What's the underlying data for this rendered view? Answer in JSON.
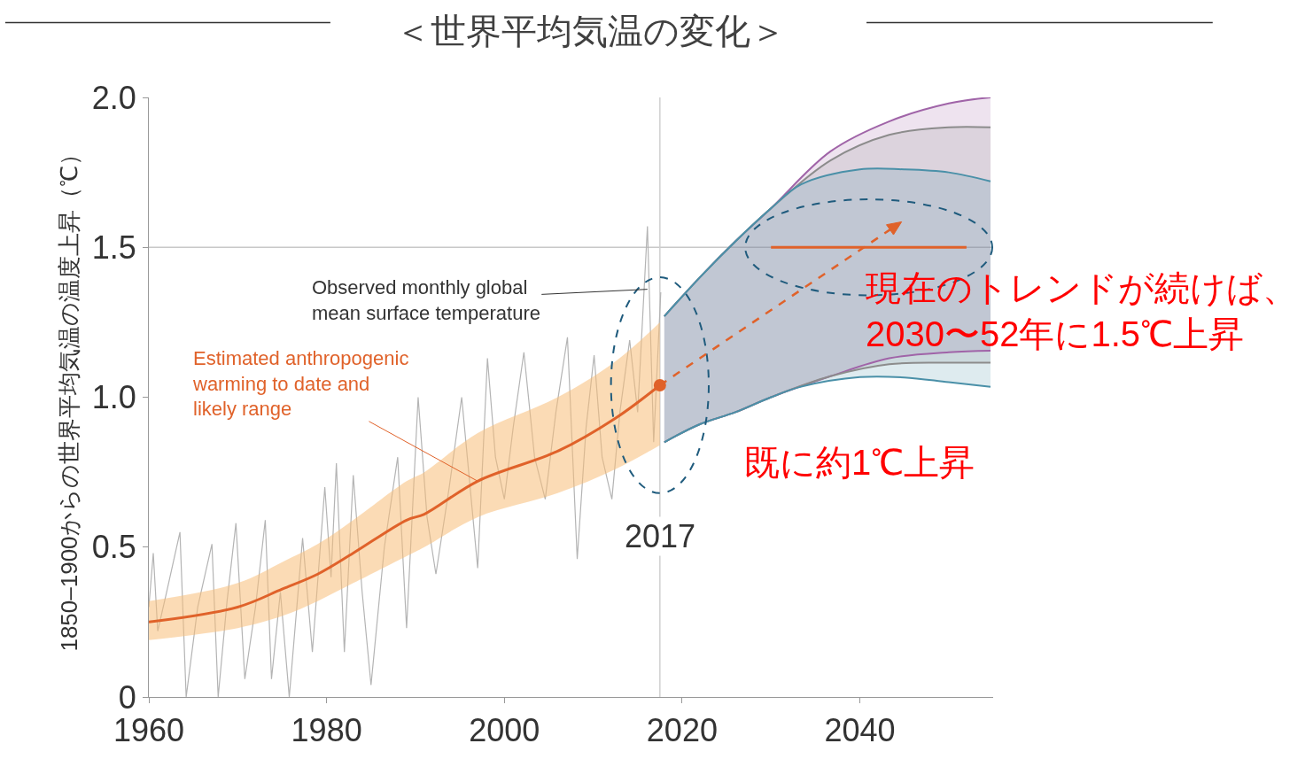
{
  "chart_data": {
    "type": "line",
    "title": "＜世界平均気温の変化＞",
    "ylabel": "1850–1900からの世界平均気温の温度上昇（℃）",
    "xlim": [
      1960,
      2055
    ],
    "xticks": [
      1960,
      1980,
      2000,
      2020,
      2040
    ],
    "ylim": [
      0,
      2.0
    ],
    "yticks": [
      0,
      {
        "value": 0.5,
        "label": "0.5"
      },
      {
        "value": 1.0,
        "label": "1.0"
      },
      {
        "value": 1.5,
        "label": "1.5"
      },
      {
        "value": 2.0,
        "label": "2.0"
      }
    ],
    "grid": false,
    "series": [
      {
        "color": "#b4b4b4",
        "x": [
          1960,
          1960.5,
          1961,
          1962,
          1963.5,
          1964.2,
          1965.5,
          1967.1,
          1967.8,
          1968.8,
          1969.8,
          1970.8,
          1972,
          1973.1,
          1973.8,
          1974.8,
          1975.8,
          1977.3,
          1978.4,
          1979.8,
          1980.5,
          1981.1,
          1982,
          1983,
          1984,
          1985,
          1986.5,
          1988,
          1989,
          1990.3,
          1991.3,
          1992.3,
          1993.8,
          1995.2,
          1997,
          1998.1,
          1999,
          2000,
          2001,
          2002.2,
          2003.4,
          2004.6,
          2005.8,
          2007.1,
          2008.2,
          2009.2,
          2010.1,
          2011,
          2012.1,
          2013,
          2014.1,
          2015,
          2016.1,
          2016.8,
          2017.6
        ],
        "values": [
          0.3,
          0.48,
          0.22,
          0.35,
          0.55,
          0.0,
          0.3,
          0.51,
          0.0,
          0.32,
          0.58,
          0.06,
          0.3,
          0.59,
          0.06,
          0.35,
          0.0,
          0.53,
          0.15,
          0.7,
          0.4,
          0.78,
          0.15,
          0.74,
          0.35,
          0.04,
          0.5,
          0.8,
          0.23,
          1.0,
          0.6,
          0.41,
          0.7,
          1.0,
          0.43,
          1.13,
          0.8,
          0.66,
          0.9,
          1.15,
          0.8,
          0.66,
          0.95,
          1.2,
          0.46,
          0.9,
          1.14,
          0.8,
          0.66,
          0.95,
          1.19,
          0.95,
          1.57,
          0.85,
          1.35
        ]
      },
      {
        "color": "#e0622a",
        "x": [
          1960,
          1970,
          1975,
          1979,
          1983,
          1989,
          1991,
          1997,
          2006,
          2012.5,
          2017.5
        ],
        "values": [
          0.25,
          0.3,
          0.36,
          0.41,
          0.48,
          0.59,
          0.61,
          0.72,
          0.82,
          0.93,
          1.04
        ],
        "lower": [
          0.19,
          0.23,
          0.27,
          0.32,
          0.38,
          0.47,
          0.5,
          0.6,
          0.68,
          0.76,
          0.84
        ],
        "upper": [
          0.32,
          0.38,
          0.45,
          0.51,
          0.59,
          0.72,
          0.75,
          0.88,
          1.0,
          1.12,
          1.25
        ]
      },
      {
        "color": "#a064a8",
        "x": [
          2018,
          2022,
          2026,
          2030,
          2036.7,
          2043.3,
          2050,
          2054.7
        ],
        "values": [
          1.27,
          1.4,
          1.52,
          1.63,
          1.82,
          1.92,
          1.98,
          2.0
        ],
        "upper": [
          1.27,
          1.4,
          1.52,
          1.63,
          1.82,
          1.92,
          1.98,
          2.0
        ],
        "lower": [
          0.85,
          0.91,
          0.95,
          1.0,
          1.07,
          1.13,
          1.15,
          1.155
        ]
      },
      {
        "color": "#8c8c8c",
        "x": [
          2018,
          2022,
          2026,
          2030,
          2036.7,
          2043.3,
          2050,
          2054.7
        ],
        "values": [
          1.27,
          1.4,
          1.52,
          1.63,
          1.79,
          1.875,
          1.9,
          1.9
        ],
        "upper": [
          1.27,
          1.4,
          1.52,
          1.63,
          1.79,
          1.875,
          1.9,
          1.9
        ],
        "lower": [
          0.85,
          0.91,
          0.95,
          1.0,
          1.07,
          1.11,
          1.115,
          1.115
        ]
      },
      {
        "color": "#4a90a8",
        "x": [
          2018,
          2022,
          2026,
          2030,
          2033.4,
          2040,
          2045,
          2050,
          2054.7
        ],
        "values": [
          1.27,
          1.4,
          1.52,
          1.63,
          1.71,
          1.76,
          1.76,
          1.75,
          1.72
        ],
        "upper": [
          1.27,
          1.4,
          1.52,
          1.63,
          1.71,
          1.76,
          1.76,
          1.75,
          1.72
        ],
        "lower": [
          0.85,
          0.91,
          0.95,
          1.0,
          1.035,
          1.067,
          1.066,
          1.05,
          1.035
        ]
      },
      {
        "color": "#a064a8",
        "x": [
          2018,
          2022,
          2026,
          2030,
          2036.7,
          2043.3,
          2050,
          2054.7
        ],
        "values": [
          0.85,
          0.91,
          0.95,
          1.0,
          1.07,
          1.13,
          1.15,
          1.155
        ]
      },
      {
        "color": "#8c8c8c",
        "x": [
          2018,
          2022,
          2026,
          2030,
          2036.7,
          2043.3,
          2050,
          2054.7
        ],
        "values": [
          0.85,
          0.91,
          0.95,
          1.0,
          1.07,
          1.11,
          1.115,
          1.115
        ]
      },
      {
        "color": "#4a90a8",
        "x": [
          2018,
          2022,
          2026,
          2030,
          2033.4,
          2040,
          2045,
          2050,
          2054.7
        ],
        "values": [
          0.85,
          0.91,
          0.95,
          1.0,
          1.035,
          1.067,
          1.066,
          1.05,
          1.035
        ]
      },
      {
        "color": "#e0622a",
        "x": [
          2030,
          2052
        ],
        "values": [
          1.5,
          1.5
        ]
      },
      {
        "type": "scatter",
        "color": "#e0622a",
        "x": [
          2017.5
        ],
        "values": [
          1.04
        ]
      }
    ],
    "ref_lines": [
      {
        "axis": "y",
        "value": 1.5,
        "color": "#c8c8c8"
      },
      {
        "axis": "x",
        "value": 2017.5,
        "label": "2017",
        "color": "#d0d0d0"
      }
    ],
    "annotations": [
      {
        "text": "Observed monthly global\nmean surface temperature",
        "x": 2016.1,
        "y": 1.36
      },
      {
        "text": "Estimated anthropogenic\nwarming to date and\nlikely range",
        "x": 1997,
        "y": 0.72
      },
      {
        "text": "既に約1℃上昇",
        "x": 2017.5,
        "y": 1.04
      },
      {
        "text": "現在のトレンドが続けば、\n2030〜52年に1.5℃上昇",
        "x": 2041,
        "y": 1.5
      }
    ]
  }
}
